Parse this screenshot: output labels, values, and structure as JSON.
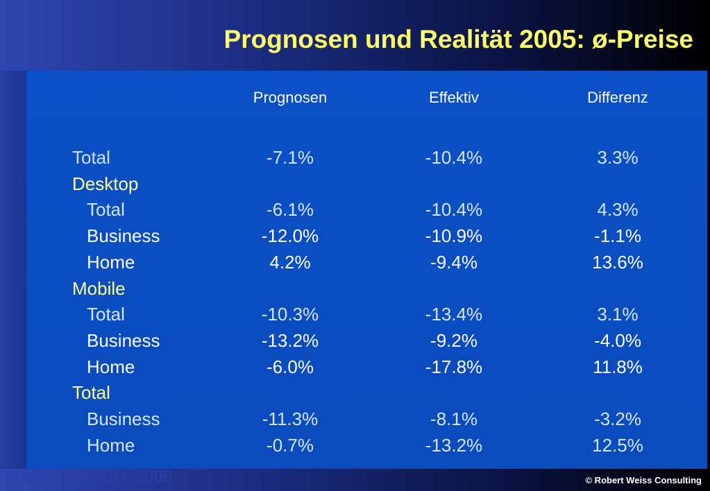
{
  "title": "Prognosen und Realität 2005: ø-Preise",
  "headers": [
    "Prognosen",
    "Effektiv",
    "Differenz"
  ],
  "rows": [
    {
      "label": "Total",
      "kind": "top",
      "values": [
        "-7.1%",
        "-10.4%",
        "3.3%"
      ]
    },
    {
      "label": "Desktop",
      "kind": "section",
      "values": [
        "",
        "",
        ""
      ]
    },
    {
      "label": "Total",
      "kind": "sub-light",
      "values": [
        "-6.1%",
        "-10.4%",
        "4.3%"
      ]
    },
    {
      "label": "Business",
      "kind": "sub",
      "values": [
        "-12.0%",
        "-10.9%",
        "-1.1%"
      ]
    },
    {
      "label": "Home",
      "kind": "sub",
      "values": [
        "4.2%",
        "-9.4%",
        "13.6%"
      ]
    },
    {
      "label": "Mobile",
      "kind": "section",
      "values": [
        "",
        "",
        ""
      ]
    },
    {
      "label": "Total",
      "kind": "sub-light",
      "values": [
        "-10.3%",
        "-13.4%",
        "3.1%"
      ]
    },
    {
      "label": "Business",
      "kind": "sub",
      "values": [
        "-13.2%",
        "-9.2%",
        "-4.0%"
      ]
    },
    {
      "label": "Home",
      "kind": "sub",
      "values": [
        "-6.0%",
        "-17.8%",
        "11.8%"
      ]
    },
    {
      "label": "Total",
      "kind": "section",
      "values": [
        "",
        "",
        ""
      ]
    },
    {
      "label": "Business",
      "kind": "sub-light",
      "values": [
        "-11.3%",
        "-8.1%",
        "-3.2%"
      ]
    },
    {
      "label": "Home",
      "kind": "sub-light",
      "values": [
        "-0.7%",
        "-13.2%",
        "12.5%"
      ]
    }
  ],
  "footer": {
    "left": "WEISSBUCH  2006",
    "right": "© Robert Weiss Consulting"
  },
  "colors": {
    "title": "#ffff66",
    "section_label": "#ffff99",
    "panel": "#0a4cc0"
  }
}
